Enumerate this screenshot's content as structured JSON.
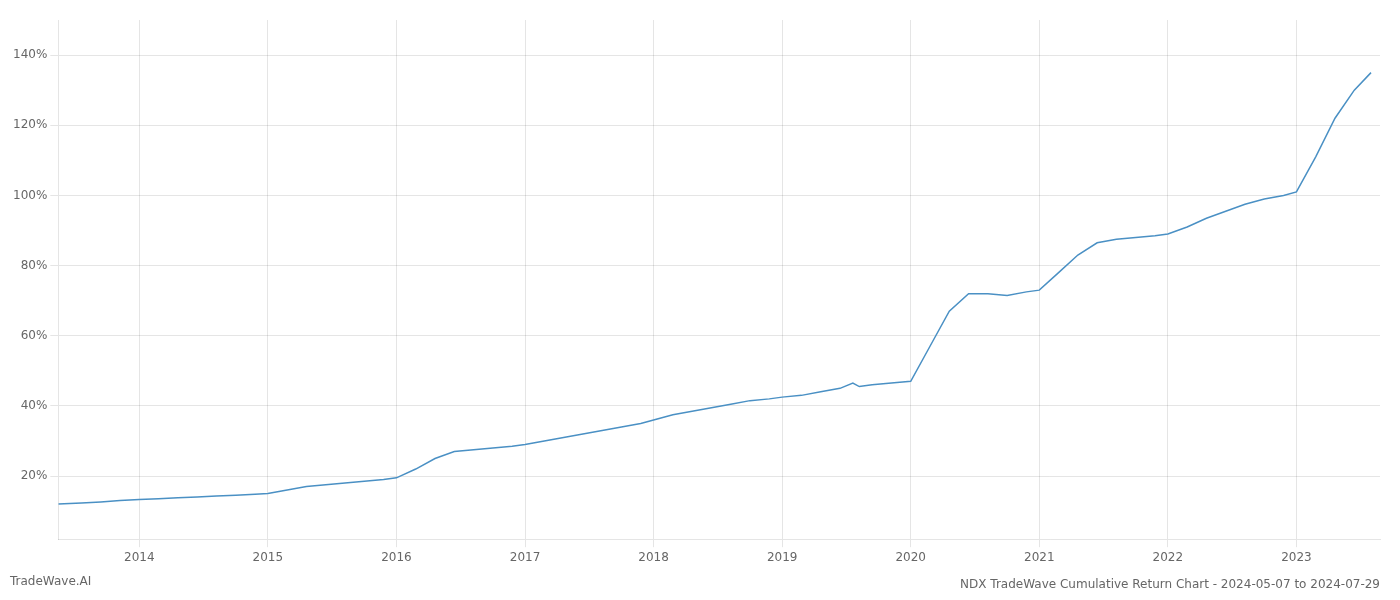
{
  "chart_data": {
    "type": "line",
    "title": "NDX TradeWave Cumulative Return Chart - 2024-05-07 to 2024-07-29",
    "annotations": [
      "TradeWave.AI"
    ],
    "color": "#4a90c4",
    "grid": true,
    "x": [
      2013.37,
      2013.55,
      2013.7,
      2013.85,
      2014.0,
      2014.15,
      2014.3,
      2014.45,
      2014.6,
      2014.75,
      2014.9,
      2015.0,
      2015.15,
      2015.3,
      2015.45,
      2015.6,
      2015.75,
      2015.9,
      2016.0,
      2016.15,
      2016.3,
      2016.45,
      2016.6,
      2016.75,
      2016.9,
      2017.0,
      2017.15,
      2017.3,
      2017.45,
      2017.6,
      2017.75,
      2017.9,
      2018.0,
      2018.15,
      2018.3,
      2018.45,
      2018.6,
      2018.75,
      2018.9,
      2019.0,
      2019.15,
      2019.3,
      2019.45,
      2019.55,
      2019.6,
      2019.7,
      2019.85,
      2020.0,
      2020.15,
      2020.3,
      2020.45,
      2020.6,
      2020.75,
      2020.9,
      2021.0,
      2021.15,
      2021.3,
      2021.45,
      2021.6,
      2021.75,
      2021.9,
      2022.0,
      2022.15,
      2022.3,
      2022.45,
      2022.6,
      2022.75,
      2022.9,
      2023.0,
      2023.15,
      2023.3,
      2023.45,
      2023.58
    ],
    "values": [
      12.0,
      12.3,
      12.6,
      13.0,
      13.3,
      13.5,
      13.8,
      14.0,
      14.3,
      14.5,
      14.8,
      15.0,
      16.0,
      17.0,
      17.5,
      18.0,
      18.5,
      19.0,
      19.5,
      22.0,
      25.0,
      27.0,
      27.5,
      28.0,
      28.5,
      29.0,
      30.0,
      31.0,
      32.0,
      33.0,
      34.0,
      35.0,
      36.0,
      37.5,
      38.5,
      39.5,
      40.5,
      41.5,
      42.0,
      42.5,
      43.0,
      44.0,
      45.0,
      46.5,
      45.5,
      46.0,
      46.5,
      47.0,
      57.0,
      67.0,
      72.0,
      72.0,
      71.5,
      72.5,
      73.0,
      78.0,
      83.0,
      86.5,
      87.5,
      88.0,
      88.5,
      89.0,
      91.0,
      93.5,
      95.5,
      97.5,
      99.0,
      100.0,
      101.0,
      111.0,
      122.0,
      130.0,
      135.0
    ],
    "xlim": [
      2013.37,
      2023.65
    ],
    "xticks": [
      2014,
      2015,
      2016,
      2017,
      2018,
      2019,
      2020,
      2021,
      2022,
      2023
    ],
    "ylim": [
      2,
      150
    ],
    "yticks": [
      {
        "value": 20,
        "label": "20%"
      },
      {
        "value": 40,
        "label": "40%"
      },
      {
        "value": 60,
        "label": "60%"
      },
      {
        "value": 80,
        "label": "80%"
      },
      {
        "value": 100,
        "label": "100%"
      },
      {
        "value": 120,
        "label": "120%"
      },
      {
        "value": 140,
        "label": "140%"
      }
    ]
  }
}
